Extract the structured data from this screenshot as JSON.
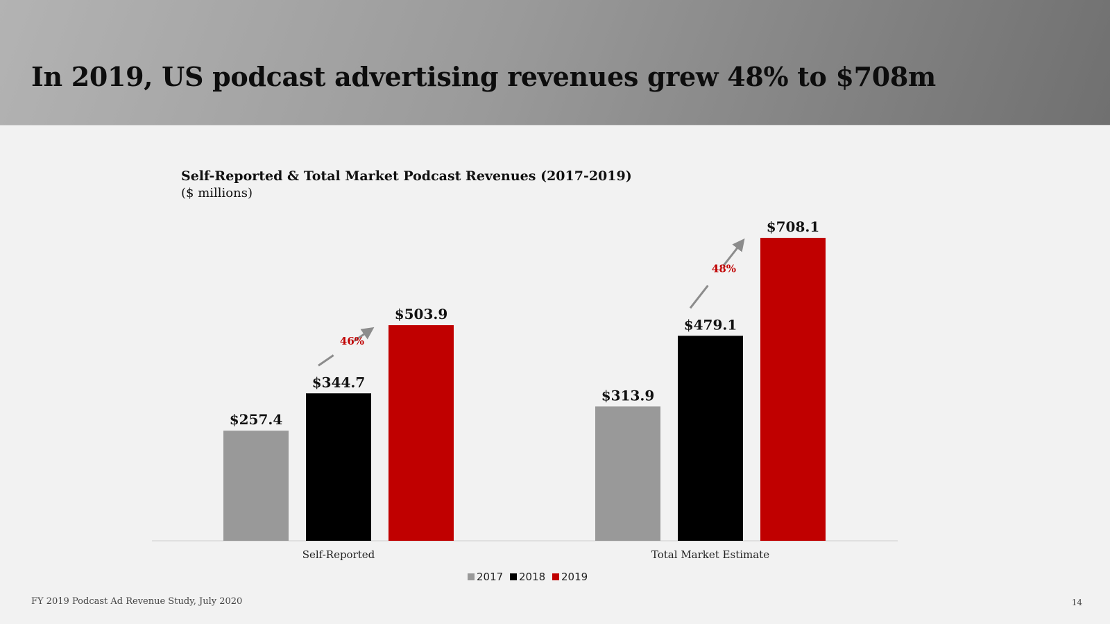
{
  "slide": {
    "title": "In 2019, US podcast advertising revenues grew 48% to $708m",
    "footer_source": "FY 2019 Podcast Ad Revenue Study, July 2020",
    "page_number": "14"
  },
  "chart_data": {
    "type": "bar",
    "title": "Self-Reported & Total Market Podcast Revenues (2017-2019)",
    "subtitle": "($ millions)",
    "categories": [
      "Self-Reported",
      "Total Market Estimate"
    ],
    "series": [
      {
        "name": "2017",
        "color": "#999999",
        "values": [
          257.4,
          313.9
        ],
        "labels": [
          "$257.4",
          "$313.9"
        ]
      },
      {
        "name": "2018",
        "color": "#000000",
        "values": [
          344.7,
          479.1
        ],
        "labels": [
          "$344.7",
          "$479.1"
        ]
      },
      {
        "name": "2019",
        "color": "#c00000",
        "values": [
          503.9,
          708.1
        ],
        "labels": [
          "$503.9",
          "$708.1"
        ]
      }
    ],
    "growth_annotations": [
      "46%",
      "48%"
    ],
    "ylim": [
      0,
      750
    ],
    "grid": false,
    "legend_position": "bottom",
    "colors": {
      "arrow": "#8c8c8c",
      "growth_text": "#c00000",
      "axis": "#d9d9d9"
    }
  }
}
